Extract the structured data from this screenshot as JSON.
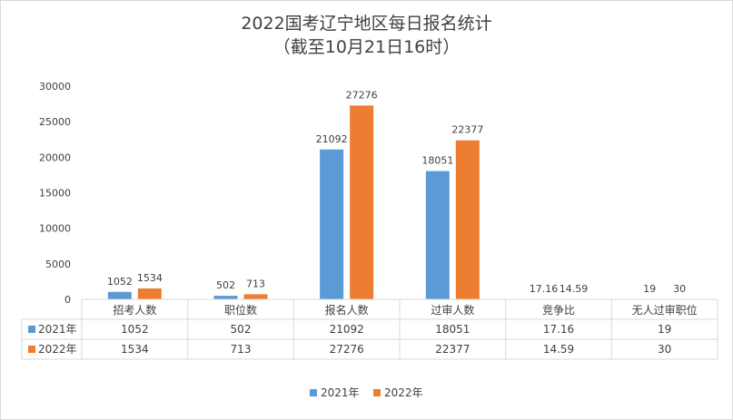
{
  "chart_data": {
    "type": "bar",
    "title": "2022国考辽宁地区每日报名统计",
    "subtitle": "（截至10月21日16时）",
    "categories": [
      "招考人数",
      "职位数",
      "报名人数",
      "过审人数",
      "竞争比",
      "无人过审职位"
    ],
    "series": [
      {
        "name": "2021年",
        "color": "#5b9bd5",
        "values": [
          1052,
          502,
          21092,
          18051,
          17.16,
          19
        ],
        "labels": [
          "1052",
          "502",
          "21092",
          "18051",
          "17.16",
          "19"
        ]
      },
      {
        "name": "2022年",
        "color": "#ed7d31",
        "values": [
          1534,
          713,
          27276,
          22377,
          14.59,
          30
        ],
        "labels": [
          "1534",
          "713",
          "27276",
          "22377",
          "14.59",
          "30"
        ]
      }
    ],
    "yticks": [
      "0",
      "5000",
      "10000",
      "15000",
      "20000",
      "25000",
      "30000"
    ],
    "ylim": [
      0,
      30000
    ],
    "grid": false,
    "data_table": true,
    "legend": "bottom"
  }
}
